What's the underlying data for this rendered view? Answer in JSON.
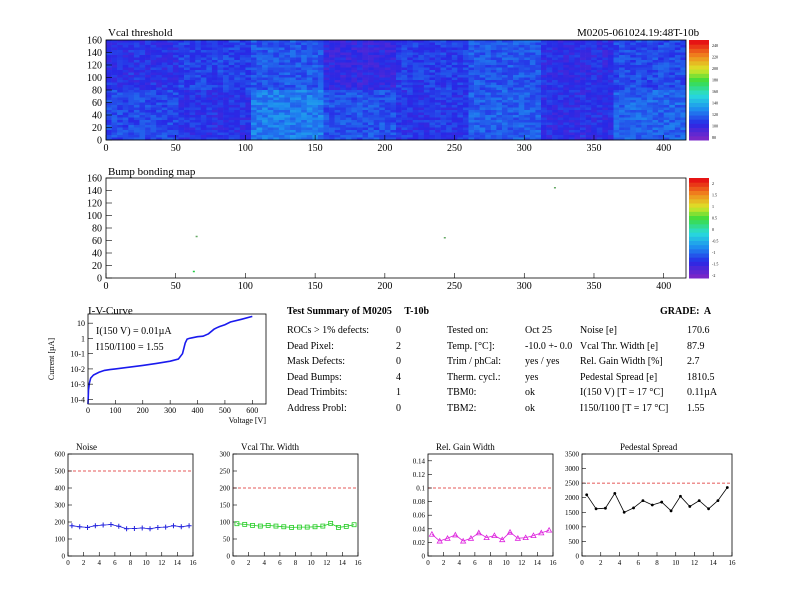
{
  "vcal": {
    "title": "Vcal threshold",
    "run_id": "M0205-061024.19:48T-10b",
    "xticks": [
      "0",
      "50",
      "100",
      "150",
      "200",
      "250",
      "300",
      "350",
      "400"
    ],
    "yticks": [
      "0",
      "20",
      "40",
      "60",
      "80",
      "100",
      "120",
      "140",
      "160"
    ],
    "palette_ticks": [
      "240",
      "220",
      "200",
      "180",
      "160",
      "140",
      "120",
      "100",
      "80"
    ]
  },
  "bump": {
    "title": "Bump bonding map",
    "xticks": [
      "0",
      "50",
      "100",
      "150",
      "200",
      "250",
      "300",
      "350",
      "400"
    ],
    "yticks": [
      "0",
      "20",
      "40",
      "60",
      "80",
      "100",
      "120",
      "140",
      "160"
    ],
    "palette_ticks": [
      "2",
      "1.5",
      "1",
      "0.5",
      "0",
      "-0.5",
      "-1",
      "-1.5",
      "-2"
    ]
  },
  "iv": {
    "title": "I-V-Curve",
    "ylabel": "Current [µA]",
    "xlabel": "Voltage [V]",
    "annot1": "I(150 V) = 0.01µA",
    "annot2": "I150/I100 = 1.55",
    "xticks": [
      "0",
      "100",
      "200",
      "300",
      "400",
      "500",
      "600"
    ],
    "yticks": [
      "10",
      "1",
      "10-1",
      "10-2",
      "10-3",
      "10-4"
    ]
  },
  "summary": {
    "title": "Test Summary of M0205",
    "tag": "T-10b",
    "grade": "GRADE:  A",
    "left": [
      {
        "label": "ROCs > 1% defects:",
        "value": "0"
      },
      {
        "label": "Dead Pixel:",
        "value": "2"
      },
      {
        "label": "Mask Defects:",
        "value": "0"
      },
      {
        "label": "Dead Bumps:",
        "value": "4"
      },
      {
        "label": "Dead Trimbits:",
        "value": "1"
      },
      {
        "label": "Address Probl:",
        "value": "0"
      }
    ],
    "mid": [
      {
        "label": "Tested on:",
        "value": "Oct 25"
      },
      {
        "label": "Temp. [°C]:",
        "value": "-10.0 +- 0.0"
      },
      {
        "label": "Trim / phCal:",
        "value": "yes / yes"
      },
      {
        "label": "Therm. cycl.:",
        "value": "yes"
      },
      {
        "label": "TBM0:",
        "value": "ok"
      },
      {
        "label": "TBM2:",
        "value": "ok"
      }
    ],
    "right": [
      {
        "label": "Noise [e]",
        "value": "170.6"
      },
      {
        "label": "Vcal Thr. Width [e]",
        "value": "87.9"
      },
      {
        "label": "Rel. Gain Width [%]",
        "value": "2.7"
      },
      {
        "label": "Pedestal Spread [e]",
        "value": "1810.5"
      },
      {
        "label": "I(150 V) [T = 17 °C]",
        "value": "0.11µA"
      },
      {
        "label": "I150/I100  [T = 17 °C]",
        "value": "1.55"
      }
    ]
  },
  "chart_data": [
    {
      "type": "heatmap",
      "title": "Vcal threshold",
      "xlim": [
        0,
        416
      ],
      "ylim": [
        0,
        160
      ],
      "zlim": [
        80,
        250
      ],
      "description_blocks": "16 ROCs (8 x 2), each 52 x 80"
    },
    {
      "type": "scatter",
      "title": "Bump bonding map",
      "xlim": [
        0,
        416
      ],
      "ylim": [
        0,
        160
      ],
      "x": [
        63,
        65,
        243,
        322
      ],
      "y": [
        10,
        66,
        64,
        144
      ]
    },
    {
      "type": "line",
      "title": "I-V-Curve",
      "xlabel": "Voltage [V]",
      "ylabel": "Current [µA]",
      "xlim": [
        0,
        650
      ],
      "log_y": true,
      "ylim": [
        5e-05,
        40
      ],
      "x": [
        0,
        2,
        5,
        10,
        20,
        40,
        60,
        80,
        100,
        150,
        200,
        250,
        300,
        330,
        345,
        355,
        362,
        370,
        380,
        400,
        420,
        440,
        460,
        470,
        480,
        500,
        520,
        560,
        600
      ],
      "y": [
        5e-05,
        0.0004,
        0.0012,
        0.0025,
        0.004,
        0.006,
        0.008,
        0.009,
        0.01,
        0.013,
        0.017,
        0.023,
        0.032,
        0.045,
        0.1,
        0.5,
        0.9,
        1.0,
        1.1,
        1.3,
        1.4,
        2,
        4,
        5,
        6,
        8,
        12,
        18,
        28
      ]
    },
    {
      "type": "line",
      "title": "Noise",
      "xlim": [
        0,
        16
      ],
      "ylim": [
        0,
        600
      ],
      "threshold": 500,
      "color": "#2222dd",
      "x": [
        0,
        1,
        2,
        3,
        4,
        5,
        6,
        7,
        8,
        9,
        10,
        11,
        12,
        13,
        14,
        15
      ],
      "values": [
        178,
        172,
        168,
        178,
        182,
        185,
        175,
        160,
        162,
        165,
        160,
        168,
        170,
        178,
        172,
        178
      ]
    },
    {
      "type": "line",
      "title": "Vcal Thr. Width",
      "xlim": [
        0,
        16
      ],
      "ylim": [
        0,
        300
      ],
      "threshold": 200,
      "color": "#22cc22",
      "x": [
        0,
        1,
        2,
        3,
        4,
        5,
        6,
        7,
        8,
        9,
        10,
        11,
        12,
        13,
        14,
        15
      ],
      "values": [
        95,
        93,
        90,
        88,
        90,
        88,
        86,
        84,
        85,
        85,
        86,
        88,
        96,
        84,
        87,
        92
      ]
    },
    {
      "type": "line",
      "title": "Rel. Gain Width",
      "xlim": [
        0,
        16
      ],
      "ylim": [
        0,
        0.15
      ],
      "threshold": 0.1,
      "color": "#dd22dd",
      "x": [
        0,
        1,
        2,
        3,
        4,
        5,
        6,
        7,
        8,
        9,
        10,
        11,
        12,
        13,
        14,
        15
      ],
      "values": [
        0.032,
        0.022,
        0.026,
        0.031,
        0.022,
        0.026,
        0.034,
        0.027,
        0.03,
        0.024,
        0.035,
        0.026,
        0.027,
        0.03,
        0.034,
        0.038
      ]
    },
    {
      "type": "line",
      "title": "Pedestal Spread",
      "xlim": [
        0,
        16
      ],
      "ylim": [
        0,
        3500
      ],
      "threshold": 2500,
      "color": "#000000",
      "x": [
        0,
        1,
        2,
        3,
        4,
        5,
        6,
        7,
        8,
        9,
        10,
        11,
        12,
        13,
        14,
        15
      ],
      "values": [
        2100,
        1620,
        1640,
        2150,
        1500,
        1650,
        1900,
        1750,
        1850,
        1550,
        2050,
        1700,
        1900,
        1620,
        1900,
        2350
      ]
    }
  ],
  "axis_ticks": {
    "noise": [
      "0",
      "100",
      "200",
      "300",
      "400",
      "500",
      "600"
    ],
    "vcal": [
      "0",
      "50",
      "100",
      "150",
      "200",
      "250",
      "300"
    ],
    "gain": [
      "0",
      "0.02",
      "0.04",
      "0.06",
      "0.08",
      "0.1",
      "0.12",
      "0.14"
    ],
    "ped": [
      "0",
      "500",
      "1000",
      "1500",
      "2000",
      "2500",
      "3000",
      "3500"
    ],
    "x16": [
      "0",
      "2",
      "4",
      "6",
      "8",
      "10",
      "12",
      "14",
      "16"
    ]
  }
}
